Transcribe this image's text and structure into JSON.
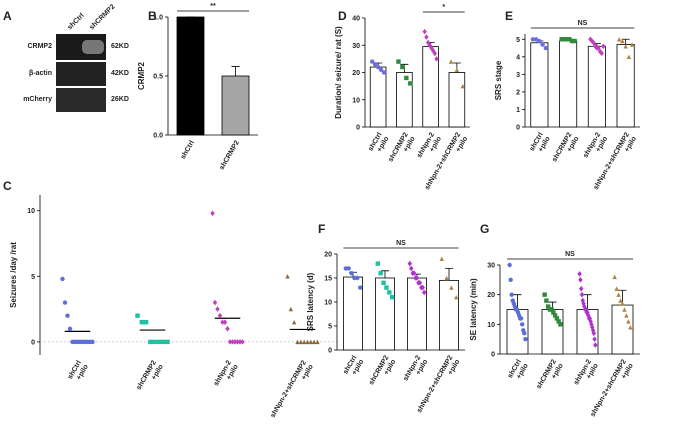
{
  "blot": {
    "panel": "A",
    "lanes": [
      "shCtrl",
      "shCRMP2"
    ],
    "rows": [
      {
        "name": "CRMP2",
        "size": "62KD"
      },
      {
        "name": "β-actin",
        "size": "42KD"
      },
      {
        "name": "mCherry",
        "size": "26KD"
      }
    ]
  },
  "chart_data": [
    {
      "type": "bar",
      "panel": "B",
      "ylabel": "CRMP2",
      "annotation": "**",
      "categories": [
        [
          "shCtrl"
        ],
        [
          "shCRMP2"
        ]
      ],
      "values": [
        1.0,
        0.5
      ],
      "errors": [
        0,
        0.08
      ],
      "bar_colors": [
        "#000000",
        "#a6a6a6"
      ],
      "ylim": [
        0,
        1
      ],
      "yticks": [
        {
          "value": 0,
          "label": "0.0"
        },
        0.5,
        {
          "value": 1,
          "label": "1.0"
        }
      ]
    },
    {
      "type": "bar",
      "panel": "D",
      "ylabel": "Duration/ seizure/ rat (S)",
      "annotation": "*",
      "categories": [
        [
          "shCtrl",
          "+pilo"
        ],
        [
          "shCRMP2",
          "+pilo"
        ],
        [
          "shNpn-2",
          "+pilo"
        ],
        [
          "shNpn-2+shCRMP2",
          "+pilo"
        ]
      ],
      "values": [
        22,
        20,
        29.5,
        20
      ],
      "errors": [
        1.5,
        3,
        1.5,
        3.5
      ],
      "bar_colors": [
        "#ffffff",
        "#ffffff",
        "#ffffff",
        "#ffffff"
      ],
      "points": [
        [
          24,
          23,
          22,
          21,
          20
        ],
        [
          24,
          22,
          18,
          16
        ],
        [
          35,
          33,
          31,
          30,
          29,
          28,
          27,
          25
        ],
        [
          24,
          21,
          15
        ]
      ],
      "point_colors": [
        "#6a6fe0",
        "#2e8b3a",
        "#c040c0",
        "#b08040"
      ],
      "point_shapes": [
        "circle",
        "square",
        "diamond",
        "triangle"
      ],
      "ylim": [
        0,
        40
      ],
      "yticks": [
        0,
        10,
        20,
        30,
        40
      ]
    },
    {
      "type": "bar",
      "panel": "E",
      "ylabel": "SRS stage",
      "annotation": "NS",
      "categories": [
        [
          "shCtrl",
          "+pilo"
        ],
        [
          "shCRMP2",
          "+pilo"
        ],
        [
          "shNpn-2",
          "+pilo"
        ],
        [
          "shNpn-2+shCRMP2",
          "+pilo"
        ]
      ],
      "values": [
        4.8,
        4.9,
        4.6,
        4.7
      ],
      "errors": [
        0.1,
        0.05,
        0.15,
        0.3
      ],
      "bar_colors": [
        "#ffffff",
        "#ffffff",
        "#ffffff",
        "#ffffff"
      ],
      "points": [
        [
          5,
          5,
          4.9,
          4.7,
          4.5
        ],
        [
          5,
          5,
          5,
          5,
          4.9,
          4.9
        ],
        [
          5,
          4.9,
          4.8,
          4.6,
          4.5,
          4.5,
          4.3,
          4.2,
          4.6
        ],
        [
          5,
          4.9,
          4.6,
          4,
          4.7
        ]
      ],
      "point_colors": [
        "#6a6fe0",
        "#2e8b3a",
        "#c040c0",
        "#b08040"
      ],
      "point_shapes": [
        "circle",
        "square",
        "diamond",
        "triangle"
      ],
      "ylim": [
        0,
        5.3
      ],
      "yticks": [
        0,
        1,
        2,
        3,
        4,
        5
      ]
    },
    {
      "type": "dot",
      "panel": "C",
      "ylabel": "Seizures /day /rat",
      "categories": [
        [
          "shCtrl",
          "+pilo"
        ],
        [
          "shCRMP2",
          "+pilo"
        ],
        [
          "shNpn-2",
          "+pilo"
        ],
        [
          "shNpn-2+shCRMP2",
          "+pilo"
        ]
      ],
      "values": [
        0.8,
        0.9,
        1.8,
        0.95
      ],
      "points": [
        [
          4.8,
          3,
          2,
          1,
          0,
          0,
          0,
          0,
          0,
          0,
          0,
          0,
          0
        ],
        [
          2,
          1.5,
          1.5,
          0,
          0,
          0,
          0,
          0
        ],
        [
          9.8,
          3,
          2.5,
          2,
          1.5,
          1.5,
          1,
          0,
          0,
          0,
          0,
          0,
          0
        ],
        [
          5,
          2.5,
          1.5,
          0,
          0,
          0,
          0,
          0,
          0,
          0
        ]
      ],
      "point_colors": [
        "#5a6fd8",
        "#20c0a0",
        "#c040c0",
        "#8b6a3a"
      ],
      "point_shapes": [
        "circle",
        "square",
        "diamond",
        "triangle"
      ],
      "ylim": [
        -1,
        11.2
      ],
      "yticks": [
        0,
        5,
        10
      ]
    },
    {
      "type": "bar",
      "panel": "F",
      "ylabel": "SRS latency (d)",
      "annotation": "NS",
      "categories": [
        [
          "shCtrl",
          "+pilo"
        ],
        [
          "shCRMP2",
          "+pilo"
        ],
        [
          "shNpn-2",
          "+pilo"
        ],
        [
          "shNpn-2+shCRMP2",
          "+pilo"
        ]
      ],
      "values": [
        15.2,
        15,
        15,
        14.5
      ],
      "errors": [
        1,
        1.5,
        0.8,
        2.5
      ],
      "bar_colors": [
        "#ffffff",
        "#ffffff",
        "#ffffff",
        "#ffffff"
      ],
      "points": [
        [
          17,
          17,
          16,
          15,
          15,
          13
        ],
        [
          18,
          16,
          14,
          13,
          12,
          11
        ],
        [
          18,
          17,
          16,
          16,
          15,
          15,
          14,
          14,
          13,
          13,
          12
        ],
        [
          19,
          15,
          13,
          11
        ]
      ],
      "point_colors": [
        "#5a6fd8",
        "#20c0a0",
        "#b030d0",
        "#b08040"
      ],
      "point_shapes": [
        "circle",
        "square",
        "diamond",
        "triangle"
      ],
      "ylim": [
        0,
        20
      ],
      "yticks": [
        0,
        5,
        10,
        15,
        20
      ]
    },
    {
      "type": "bar",
      "panel": "G",
      "ylabel": "SE latency (min)",
      "annotation": "NS",
      "categories": [
        [
          "shCtrl",
          "+pilo"
        ],
        [
          "shCRMP2",
          "+pilo"
        ],
        [
          "shNpn-2",
          "+pilo"
        ],
        [
          "shNpn-2+shCRMP2",
          "+pilo"
        ]
      ],
      "values": [
        15,
        15,
        15,
        16.5
      ],
      "errors": [
        5,
        2.5,
        5,
        5
      ],
      "bar_colors": [
        "#ffffff",
        "#ffffff",
        "#ffffff",
        "#ffffff"
      ],
      "points": [
        [
          30,
          25,
          20,
          18,
          17,
          16,
          15,
          15,
          14,
          13,
          12,
          12,
          10,
          8,
          7,
          5
        ],
        [
          20,
          18,
          16,
          15,
          15,
          14,
          13,
          12,
          11,
          10
        ],
        [
          27,
          25,
          22,
          20,
          18,
          17,
          16,
          15,
          15,
          14,
          14,
          13,
          12,
          12,
          11,
          10,
          9,
          8,
          7,
          5,
          3
        ],
        [
          26,
          22,
          20,
          18,
          17,
          15,
          13,
          11,
          9
        ]
      ],
      "point_colors": [
        "#5a6fd8",
        "#2e8b3a",
        "#b030d0",
        "#b08040"
      ],
      "point_shapes": [
        "circle",
        "square",
        "diamond",
        "triangle"
      ],
      "ylim": [
        0,
        30
      ],
      "yticks": [
        0,
        10,
        20,
        30
      ]
    }
  ]
}
